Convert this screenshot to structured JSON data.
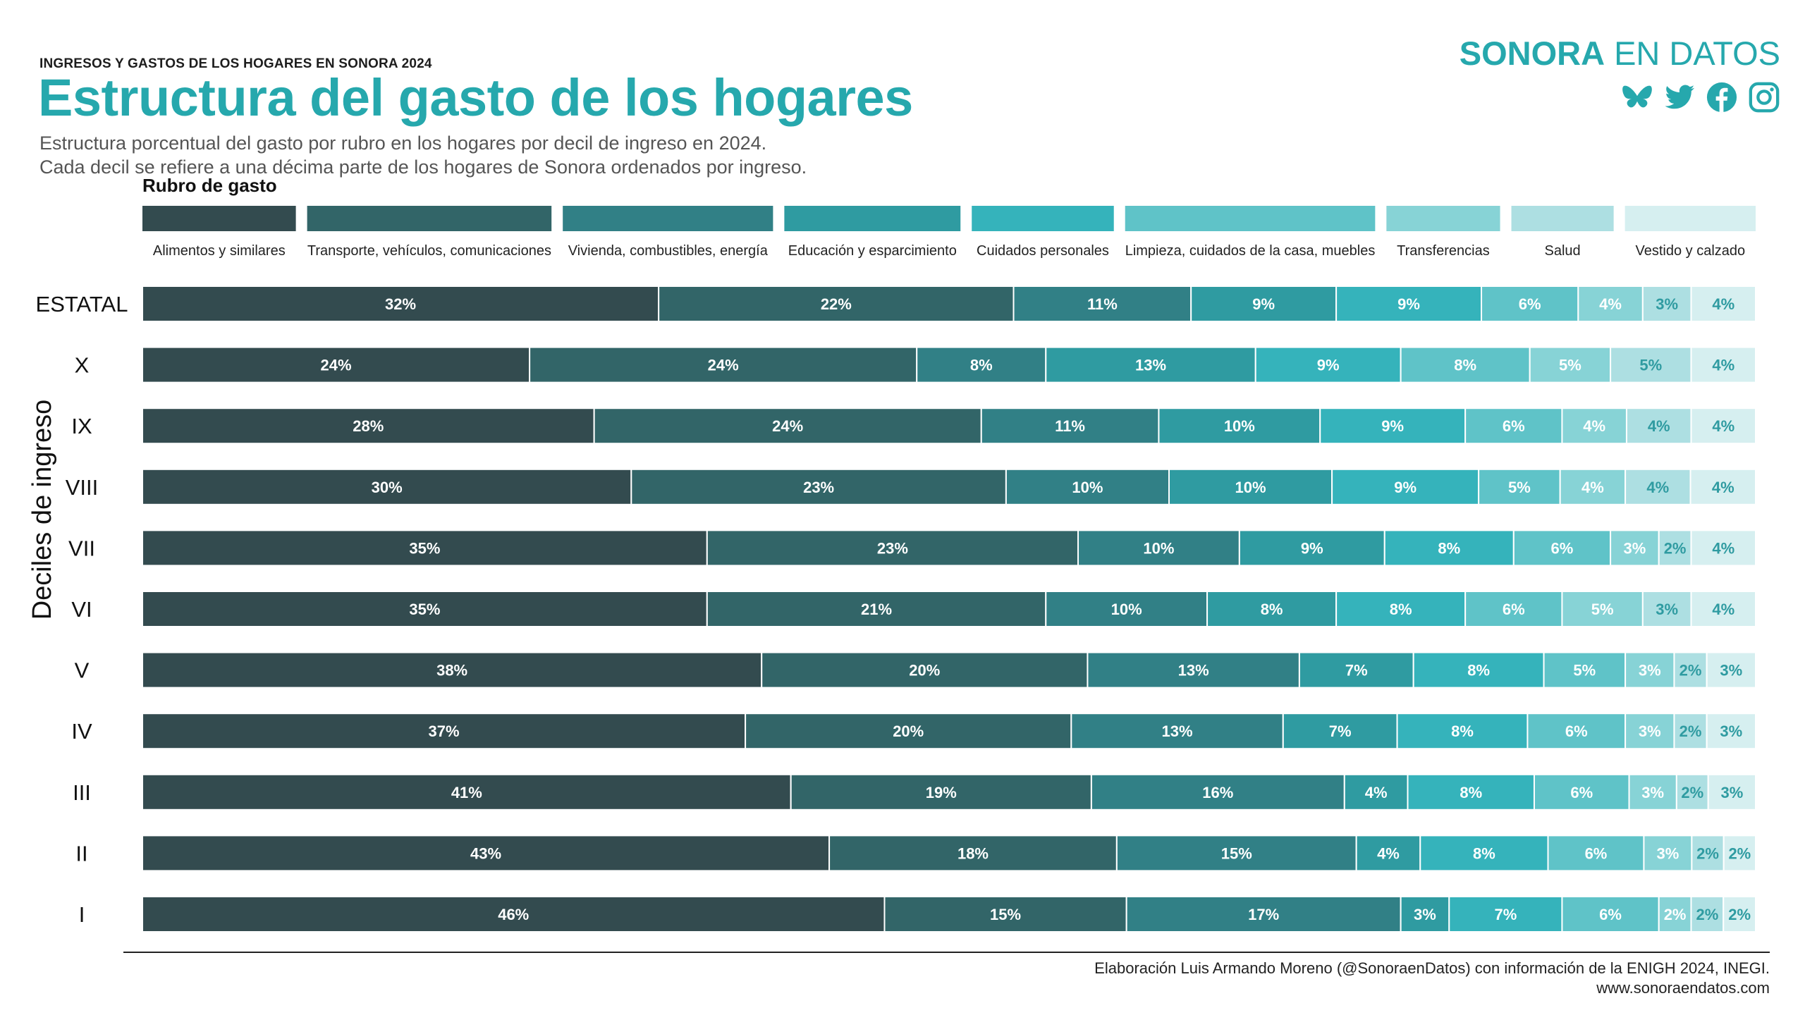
{
  "header": {
    "kicker": "INGRESOS Y GASTOS DE LOS HOGARES EN SONORA 2024",
    "title": "Estructura del gasto de los hogares",
    "subtitle_line1": "Estructura porcentual del gasto por rubro en los hogares por decil de ingreso en 2024.",
    "subtitle_line2": "Cada decil se refiere a una décima parte de los hogares de Sonora ordenados por ingreso."
  },
  "brand": {
    "name_bold": "SONORA",
    "name_rest": " EN DATOS",
    "color": "#26a8ad",
    "icons": [
      "bluesky-icon",
      "twitter-icon",
      "facebook-icon",
      "instagram-icon"
    ]
  },
  "footer": {
    "source_line1": "Elaboración Luis Armando Moreno (@SonoraenDatos) con información de la ENIGH 2024, INEGI.",
    "source_line2": "www.sonoraendatos.com"
  },
  "chart_data": {
    "type": "bar",
    "orientation": "horizontal",
    "stacked": true,
    "legend_title": "Rubro de gasto",
    "legend_placement": "top",
    "ylabel": "Deciles de ingreso",
    "categories": [
      "ESTATAL",
      "X",
      "IX",
      "VIII",
      "VII",
      "VI",
      "V",
      "IV",
      "III",
      "II",
      "I"
    ],
    "series": [
      {
        "name": "Alimentos y similares",
        "color": "#334b4f",
        "label_color": "#ffffff",
        "values": [
          32,
          24,
          28,
          30,
          35,
          35,
          38,
          37,
          41,
          43,
          46
        ]
      },
      {
        "name": "Transporte, vehículos, comunicaciones",
        "color": "#326568",
        "label_color": "#ffffff",
        "values": [
          22,
          24,
          24,
          23,
          23,
          21,
          20,
          20,
          19,
          18,
          15
        ]
      },
      {
        "name": "Vivienda, combustibles, energía",
        "color": "#318086",
        "label_color": "#ffffff",
        "values": [
          11,
          8,
          11,
          10,
          10,
          10,
          13,
          13,
          16,
          15,
          17
        ]
      },
      {
        "name": "Educación y esparcimiento",
        "color": "#2f9ba1",
        "label_color": "#ffffff",
        "values": [
          9,
          13,
          10,
          10,
          9,
          8,
          7,
          7,
          4,
          4,
          3
        ]
      },
      {
        "name": "Cuidados personales",
        "color": "#35b3bb",
        "label_color": "#ffffff",
        "values": [
          9,
          9,
          9,
          9,
          8,
          8,
          8,
          8,
          8,
          8,
          7
        ]
      },
      {
        "name": "Limpieza, cuidados de la casa, muebles",
        "color": "#5fc3c8",
        "label_color": "#ffffff",
        "values": [
          6,
          8,
          6,
          5,
          6,
          6,
          5,
          6,
          6,
          6,
          6
        ]
      },
      {
        "name": "Transferencias",
        "color": "#87d3d6",
        "label_color": "#ffffff",
        "values": [
          4,
          5,
          4,
          4,
          3,
          5,
          3,
          3,
          3,
          3,
          2
        ]
      },
      {
        "name": "Salud",
        "color": "#addfe2",
        "label_color": "#2f9ba1",
        "values": [
          3,
          5,
          4,
          4,
          2,
          3,
          2,
          2,
          2,
          2,
          2
        ]
      },
      {
        "name": "Vestido y calzado",
        "color": "#d6eff0",
        "label_color": "#2f9ba1",
        "values": [
          4,
          4,
          4,
          4,
          4,
          4,
          3,
          3,
          3,
          2,
          2
        ]
      }
    ],
    "value_suffix": "%"
  }
}
